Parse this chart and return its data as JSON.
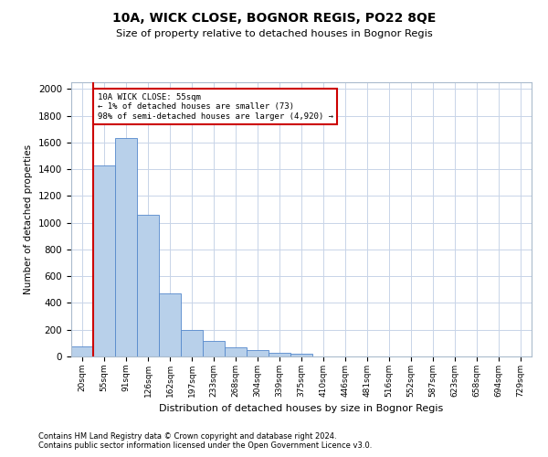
{
  "title1": "10A, WICK CLOSE, BOGNOR REGIS, PO22 8QE",
  "title2": "Size of property relative to detached houses in Bognor Regis",
  "xlabel": "Distribution of detached houses by size in Bognor Regis",
  "ylabel": "Number of detached properties",
  "footnote1": "Contains HM Land Registry data © Crown copyright and database right 2024.",
  "footnote2": "Contains public sector information licensed under the Open Government Licence v3.0.",
  "annotation_line1": "10A WICK CLOSE: 55sqm",
  "annotation_line2": "← 1% of detached houses are smaller (73)",
  "annotation_line3": "98% of semi-detached houses are larger (4,920) →",
  "bar_color": "#b8d0ea",
  "bar_edge_color": "#5588cc",
  "red_line_color": "#cc0000",
  "annotation_box_color": "#cc0000",
  "background_color": "#ffffff",
  "grid_color": "#c8d4e8",
  "categories": [
    "20sqm",
    "55sqm",
    "91sqm",
    "126sqm",
    "162sqm",
    "197sqm",
    "233sqm",
    "268sqm",
    "304sqm",
    "339sqm",
    "375sqm",
    "410sqm",
    "446sqm",
    "481sqm",
    "516sqm",
    "552sqm",
    "587sqm",
    "623sqm",
    "658sqm",
    "694sqm",
    "729sqm"
  ],
  "values": [
    73,
    1430,
    1630,
    1060,
    470,
    200,
    115,
    65,
    45,
    30,
    20,
    0,
    0,
    0,
    0,
    0,
    0,
    0,
    0,
    0,
    0
  ],
  "ylim": [
    0,
    2050
  ],
  "yticks": [
    0,
    200,
    400,
    600,
    800,
    1000,
    1200,
    1400,
    1600,
    1800,
    2000
  ],
  "red_bar_index": 1,
  "figsize": [
    6.0,
    5.0
  ],
  "dpi": 100
}
